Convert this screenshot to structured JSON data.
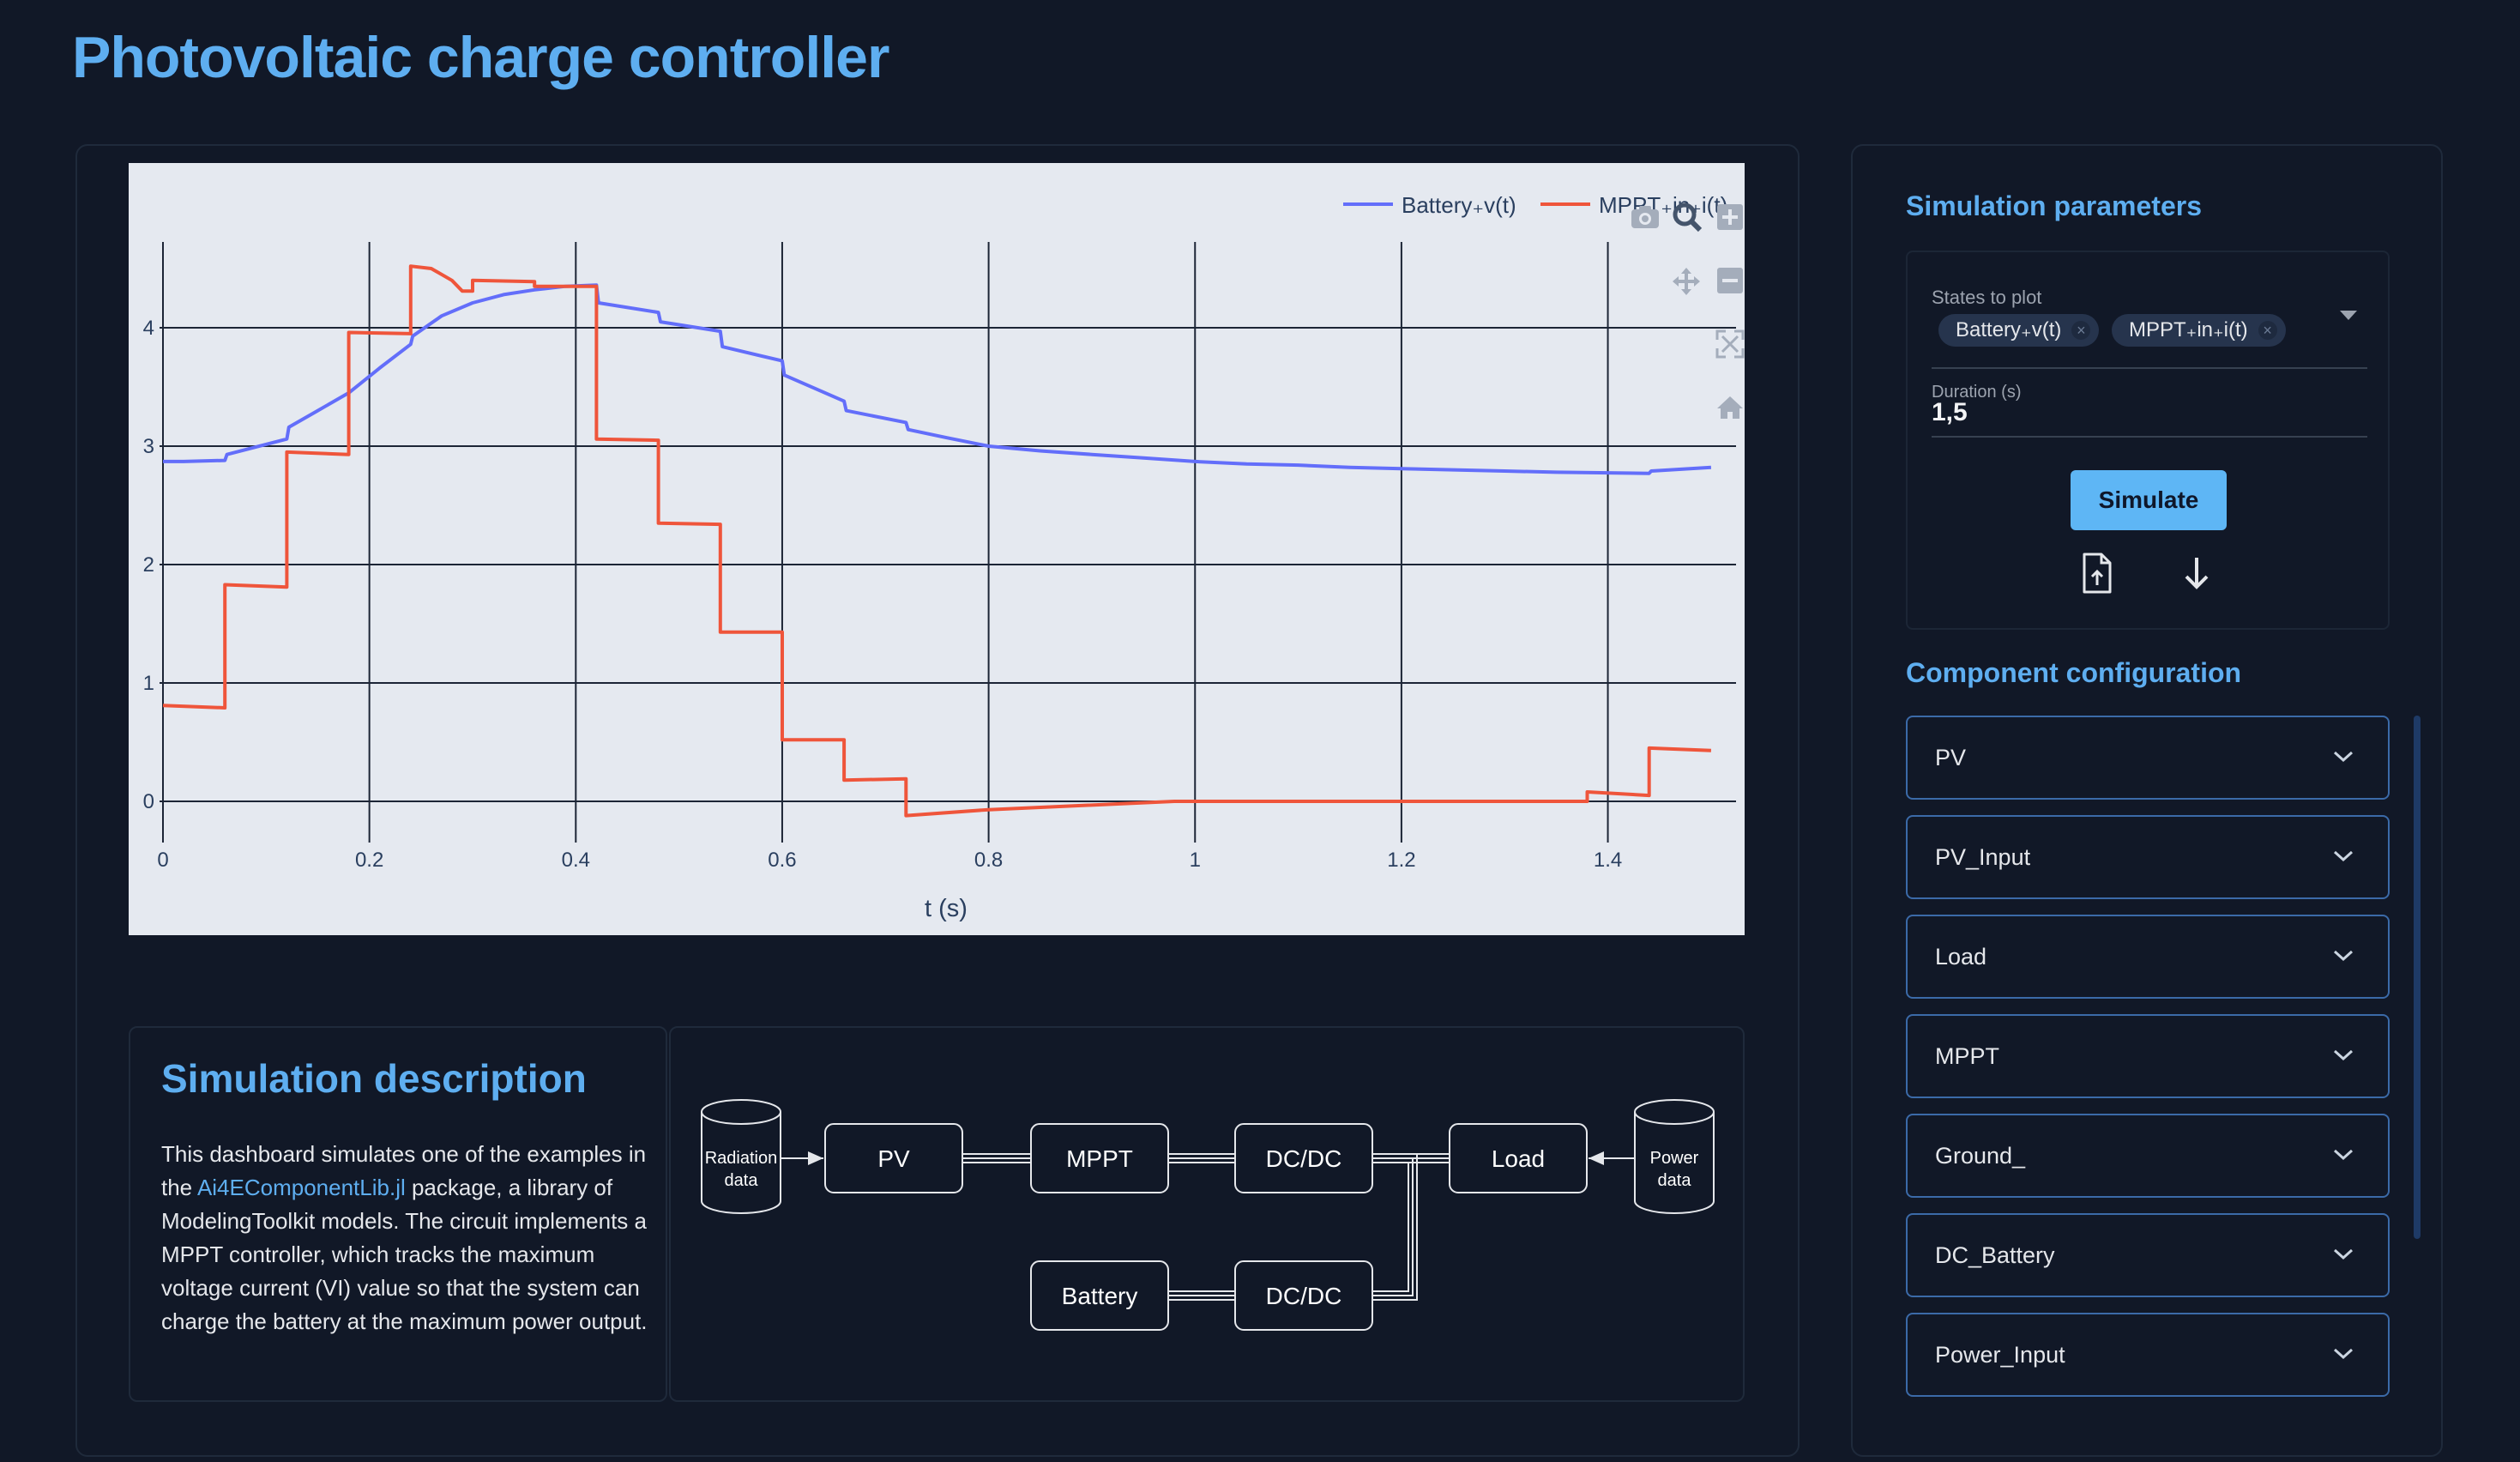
{
  "page": {
    "title": "Photovoltaic charge controller"
  },
  "chart_data": {
    "type": "line",
    "title": "",
    "xlabel": "t (s)",
    "ylabel": "",
    "xlim": [
      0,
      1.5
    ],
    "ylim": [
      -0.35,
      4.85
    ],
    "xticks": [
      0,
      0.2,
      0.4,
      0.6,
      0.8,
      1,
      1.2,
      1.4
    ],
    "xtick_labels": [
      "0",
      "0.2",
      "0.4",
      "0.6",
      "0.8",
      "1",
      "1.2",
      "1.4"
    ],
    "yticks": [
      0,
      1,
      2,
      3,
      4
    ],
    "ytick_labels": [
      "0",
      "1",
      "2",
      "3",
      "4"
    ],
    "grid": true,
    "legend_position": "top-right",
    "series": [
      {
        "name": "Battery₊v(t)",
        "color": "#636efa",
        "x": [
          0,
          0.02,
          0.06,
          0.062,
          0.12,
          0.122,
          0.15,
          0.18,
          0.21,
          0.24,
          0.242,
          0.27,
          0.3,
          0.33,
          0.36,
          0.39,
          0.42,
          0.422,
          0.48,
          0.482,
          0.54,
          0.542,
          0.6,
          0.602,
          0.66,
          0.662,
          0.72,
          0.722,
          0.76,
          0.8,
          0.85,
          0.9,
          0.95,
          1.0,
          1.05,
          1.1,
          1.15,
          1.2,
          1.25,
          1.3,
          1.35,
          1.44,
          1.442,
          1.5
        ],
        "y": [
          2.87,
          2.87,
          2.88,
          2.93,
          3.06,
          3.16,
          3.3,
          3.45,
          3.66,
          3.86,
          3.93,
          4.1,
          4.21,
          4.28,
          4.32,
          4.35,
          4.36,
          4.21,
          4.13,
          4.05,
          3.97,
          3.84,
          3.72,
          3.6,
          3.38,
          3.3,
          3.2,
          3.14,
          3.07,
          3.0,
          2.96,
          2.93,
          2.9,
          2.87,
          2.85,
          2.84,
          2.82,
          2.81,
          2.8,
          2.79,
          2.78,
          2.77,
          2.79,
          2.82
        ]
      },
      {
        "name": "MPPT₊in₊i(t)",
        "color": "#ef553b",
        "x": [
          0,
          0.06,
          0.06,
          0.12,
          0.12,
          0.18,
          0.18,
          0.24,
          0.24,
          0.26,
          0.28,
          0.29,
          0.3,
          0.3,
          0.36,
          0.36,
          0.42,
          0.42,
          0.48,
          0.48,
          0.54,
          0.54,
          0.6,
          0.6,
          0.66,
          0.66,
          0.72,
          0.72,
          0.8,
          0.98,
          1.2,
          1.38,
          1.38,
          1.44,
          1.44,
          1.5
        ],
        "y": [
          0.81,
          0.79,
          1.83,
          1.81,
          2.95,
          2.93,
          3.96,
          3.95,
          4.52,
          4.5,
          4.4,
          4.31,
          4.31,
          4.4,
          4.39,
          4.35,
          4.35,
          3.06,
          3.05,
          2.35,
          2.34,
          1.43,
          1.43,
          0.52,
          0.52,
          0.18,
          0.19,
          -0.12,
          -0.07,
          0.0,
          0.0,
          0.0,
          0.08,
          0.05,
          0.45,
          0.43
        ]
      }
    ]
  },
  "plot_toolbar": {
    "camera": "camera-icon",
    "zoom": "zoom-icon",
    "zoom_in": "zoom-in-icon",
    "pan": "pan-icon",
    "zoom_out": "zoom-out-icon",
    "autoscale": "autoscale-icon",
    "reset": "home-icon"
  },
  "description": {
    "title": "Simulation description",
    "text_before_link": "This dashboard simulates one of the examples in the ",
    "link": "Ai4EComponentLib.jl",
    "text_after_link": " package, a library of ModelingToolkit models. The circuit implements a MPPT controller, which tracks the maximum voltage current (VI) value so that the system can charge the battery at the maximum power output."
  },
  "diagram": {
    "nodes": {
      "radiation_line1": "Radiation",
      "radiation_line2": "data",
      "pv": "PV",
      "mppt": "MPPT",
      "dcdc_top": "DC/DC",
      "load": "Load",
      "power_line1": "Power",
      "power_line2": "data",
      "battery": "Battery",
      "dcdc_bottom": "DC/DC"
    }
  },
  "sidebar": {
    "params_title": "Simulation parameters",
    "states_label": "States to plot",
    "states_selected": [
      "Battery₊v(t)",
      "MPPT₊in₊i(t)"
    ],
    "chip_remove": "×",
    "duration_label": "Duration (s)",
    "duration_value": "1,5",
    "simulate_label": "Simulate",
    "upload_icon": "file-upload-icon",
    "download_icon": "arrow-down-icon",
    "components_title": "Component configuration",
    "components": [
      "PV",
      "PV_Input",
      "Load",
      "MPPT",
      "Ground_",
      "DC_Battery",
      "Power_Input"
    ]
  },
  "colors": {
    "background": "#111827",
    "accent": "#5eaef0",
    "plot_bg": "#e5e9f0",
    "button": "#5eb6f5",
    "item_border": "#3b6aa8"
  }
}
